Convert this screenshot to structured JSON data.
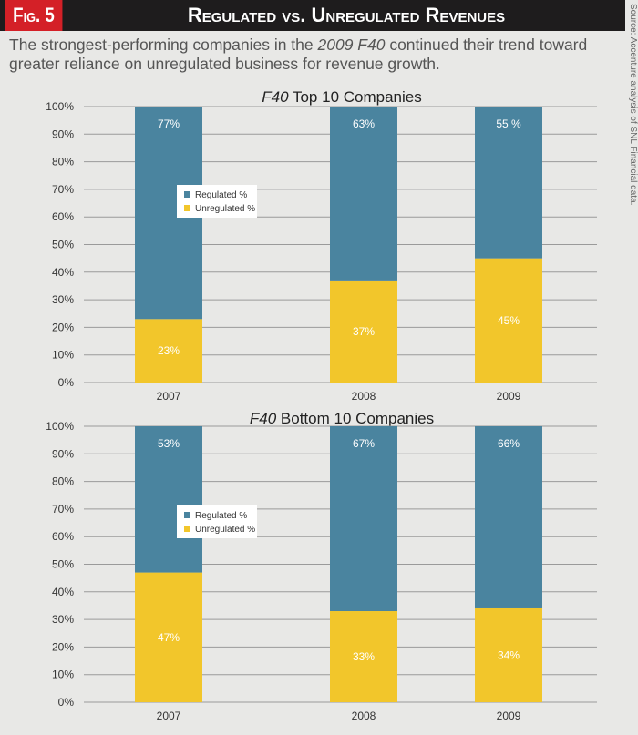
{
  "header": {
    "fig": "Fig. 5",
    "title": "Regulated vs. Unregulated Revenues"
  },
  "subtitle": {
    "pre": "The strongest-performing companies in the ",
    "em": "2009 F40",
    "post": " continued their trend toward greater reliance on unregulated business for revenue growth."
  },
  "source": "Source: Accenture analysis of SNL Financial data.",
  "colors": {
    "regulated": "#4a849f",
    "unregulated": "#f2c62b"
  },
  "chart_data": [
    {
      "type": "bar",
      "stacked": true,
      "title_em": "F40",
      "title": " Top 10 Companies",
      "categories": [
        "2007",
        "2008",
        "2009"
      ],
      "series": [
        {
          "name": "Unregulated %",
          "values": [
            23,
            37,
            45
          ],
          "labels": [
            "23%",
            "37%",
            "45%"
          ]
        },
        {
          "name": "Regulated %",
          "values": [
            77,
            63,
            55
          ],
          "labels": [
            "77%",
            "63%",
            "55 %"
          ]
        }
      ],
      "ylim": [
        0,
        100
      ],
      "yticks": [
        "0%",
        "10%",
        "20%",
        "30%",
        "40%",
        "50%",
        "60%",
        "70%",
        "80%",
        "90%",
        "100%"
      ],
      "grid": true,
      "legend": "upper-left"
    },
    {
      "type": "bar",
      "stacked": true,
      "title_em": "F40",
      "title": " Bottom 10 Companies",
      "categories": [
        "2007",
        "2008",
        "2009"
      ],
      "series": [
        {
          "name": "Unregulated %",
          "values": [
            47,
            33,
            34
          ],
          "labels": [
            "47%",
            "33%",
            "34%"
          ]
        },
        {
          "name": "Regulated %",
          "values": [
            53,
            67,
            66
          ],
          "labels": [
            "53%",
            "67%",
            "66%"
          ]
        }
      ],
      "ylim": [
        0,
        100
      ],
      "yticks": [
        "0%",
        "10%",
        "20%",
        "30%",
        "40%",
        "50%",
        "60%",
        "70%",
        "80%",
        "90%",
        "100%"
      ],
      "grid": true,
      "legend": "upper-left"
    }
  ]
}
